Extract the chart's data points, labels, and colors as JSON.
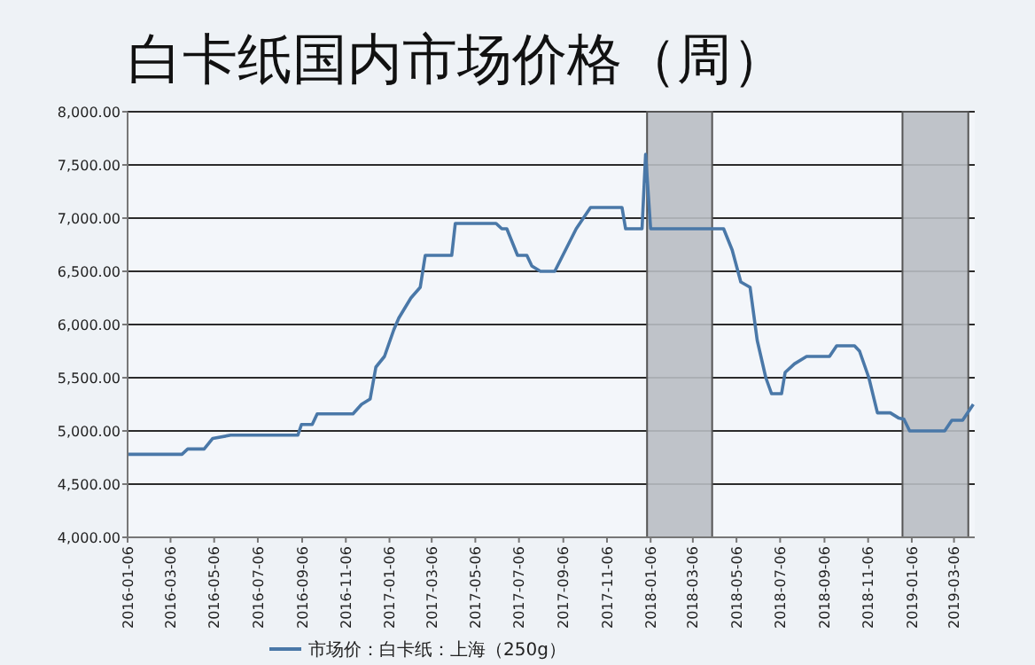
{
  "chart_data": {
    "type": "line",
    "title": "白卡纸国内市场价格（周）",
    "x": [
      "2016-01-06",
      "2016-03-22",
      "2016-03-30",
      "2016-04-22",
      "2016-05-04",
      "2016-05-29",
      "2016-08-31",
      "2016-09-05",
      "2016-09-20",
      "2016-09-27",
      "2016-11-16",
      "2016-11-28",
      "2016-12-10",
      "2016-12-18",
      "2016-12-30",
      "2017-01-12",
      "2017-01-19",
      "2017-02-05",
      "2017-02-18",
      "2017-02-25",
      "2017-04-03",
      "2017-04-08",
      "2017-06-04",
      "2017-06-12",
      "2017-06-19",
      "2017-07-04",
      "2017-07-17",
      "2017-07-24",
      "2017-08-05",
      "2017-08-25",
      "2017-09-24",
      "2017-10-14",
      "2017-11-27",
      "2017-12-02",
      "2017-12-25",
      "2017-12-30",
      "2018-01-06",
      "2018-04-18",
      "2018-04-30",
      "2018-05-12",
      "2018-05-25",
      "2018-06-04",
      "2018-06-16",
      "2018-06-24",
      "2018-07-08",
      "2018-07-13",
      "2018-07-26",
      "2018-08-12",
      "2018-09-13",
      "2018-09-23",
      "2018-10-18",
      "2018-10-25",
      "2018-11-07",
      "2018-11-19",
      "2018-12-07",
      "2018-12-19",
      "2018-12-26",
      "2019-01-03",
      "2019-02-21",
      "2019-03-03",
      "2019-03-18",
      "2019-03-28",
      "2019-04-02"
    ],
    "series": [
      {
        "name": "市场价：白卡纸：上海（250g）",
        "color": "#4a78a8",
        "values": [
          4780,
          4780,
          4830,
          4830,
          4930,
          4960,
          4960,
          5060,
          5060,
          5160,
          5160,
          5250,
          5300,
          5600,
          5700,
          5950,
          6060,
          6250,
          6350,
          6650,
          6650,
          6950,
          6950,
          6900,
          6900,
          6650,
          6650,
          6550,
          6500,
          6500,
          6900,
          7100,
          7100,
          6900,
          6900,
          7600,
          6900,
          6900,
          6700,
          6400,
          6350,
          5850,
          5500,
          5350,
          5350,
          5550,
          5630,
          5700,
          5700,
          5800,
          5800,
          5750,
          5500,
          5170,
          5170,
          5120,
          5110,
          5000,
          5000,
          5100,
          5100,
          5200,
          5250
        ]
      }
    ],
    "xlim": [
      "2016-01-06",
      "2019-04-04"
    ],
    "xticks": [
      "2016-01-06",
      "2016-03-06",
      "2016-05-06",
      "2016-07-06",
      "2016-09-06",
      "2016-11-06",
      "2017-01-06",
      "2017-03-06",
      "2017-05-06",
      "2017-07-06",
      "2017-09-06",
      "2017-11-06",
      "2018-01-06",
      "2018-03-06",
      "2018-05-06",
      "2018-07-06",
      "2018-09-06",
      "2018-11-06",
      "2019-01-06",
      "2019-03-06"
    ],
    "ylim": [
      4000,
      8000
    ],
    "yticks": [
      {
        "value": 4000,
        "label": "4,000.00"
      },
      {
        "value": 4500,
        "label": "4,500.00"
      },
      {
        "value": 5000,
        "label": "5,000.00"
      },
      {
        "value": 5500,
        "label": "5,500.00"
      },
      {
        "value": 6000,
        "label": "6,000.00"
      },
      {
        "value": 6500,
        "label": "6,500.00"
      },
      {
        "value": 7000,
        "label": "7,000.00"
      },
      {
        "value": 7500,
        "label": "7,500.00"
      },
      {
        "value": 8000,
        "label": "8,000.00"
      }
    ],
    "bands": [
      {
        "axis": "x",
        "from": "2018-01-01",
        "to": "2018-04-02",
        "color": "#b9bec3"
      },
      {
        "axis": "x",
        "from": "2018-12-24",
        "to": "2019-03-26",
        "color": "#b9bec3"
      }
    ],
    "grid": "y",
    "legend": "bottom",
    "line_style": "solid",
    "marker": "none"
  }
}
